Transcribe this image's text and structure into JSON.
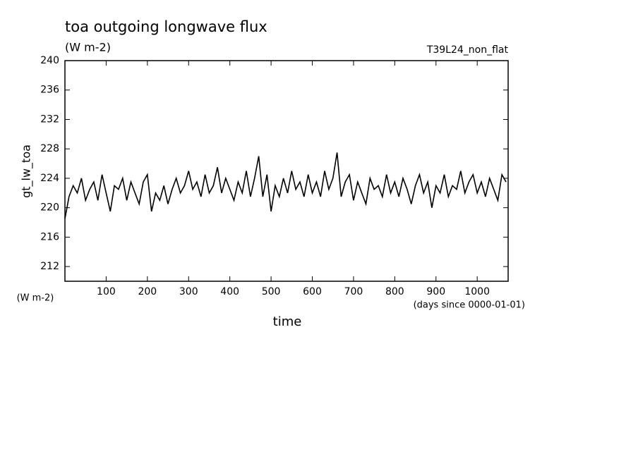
{
  "chart_data": {
    "type": "line",
    "title": "toa outgoing longwave flux",
    "subtitle": "(W m-2)",
    "run_label": "T39L24_non_flat",
    "y_label": "gt_lw_toa",
    "y_unit": "(W m-2)",
    "x_label": "time",
    "x_unit": "(days since 0000-01-01)",
    "xlim": [
      0,
      1075
    ],
    "ylim": [
      210,
      240
    ],
    "xticks": [
      100,
      200,
      300,
      400,
      500,
      600,
      700,
      800,
      900,
      1000
    ],
    "yticks": [
      212,
      216,
      220,
      224,
      228,
      232,
      236,
      240
    ],
    "color": "#000000",
    "x": [
      0,
      10,
      20,
      30,
      40,
      50,
      60,
      70,
      80,
      90,
      100,
      110,
      120,
      130,
      140,
      150,
      160,
      170,
      180,
      190,
      200,
      210,
      220,
      230,
      240,
      250,
      260,
      270,
      280,
      290,
      300,
      310,
      320,
      330,
      340,
      350,
      360,
      370,
      380,
      390,
      400,
      410,
      420,
      430,
      440,
      450,
      460,
      470,
      480,
      490,
      500,
      510,
      520,
      530,
      540,
      550,
      560,
      570,
      580,
      590,
      600,
      610,
      620,
      630,
      640,
      650,
      660,
      670,
      680,
      690,
      700,
      710,
      720,
      730,
      740,
      750,
      760,
      770,
      780,
      790,
      800,
      810,
      820,
      830,
      840,
      850,
      860,
      870,
      880,
      890,
      900,
      910,
      920,
      930,
      940,
      950,
      960,
      970,
      980,
      990,
      1000,
      1010,
      1020,
      1030,
      1040,
      1050,
      1060,
      1070
    ],
    "values": [
      218.5,
      221.5,
      223,
      222,
      224,
      221,
      222.5,
      223.5,
      221,
      224.5,
      222,
      219.5,
      223,
      222.5,
      224,
      221,
      223.5,
      222,
      220.5,
      223.5,
      224.5,
      219.5,
      222,
      221,
      223,
      220.5,
      222.5,
      224,
      222,
      223,
      225,
      222.5,
      223.5,
      221.5,
      224.5,
      222,
      223,
      225.5,
      222,
      224,
      222.5,
      221,
      223.5,
      222,
      225,
      221.5,
      224,
      227,
      221.5,
      224.5,
      219.5,
      223,
      221.5,
      224,
      222,
      225,
      222.5,
      223.5,
      221.5,
      224.5,
      222,
      223.5,
      221.5,
      225,
      222.5,
      224,
      227.5,
      221.5,
      223.5,
      224.5,
      221,
      223.5,
      222,
      220.5,
      224,
      222.5,
      223,
      221.5,
      224.5,
      222,
      223.5,
      221.5,
      224,
      222.5,
      220.5,
      223,
      224.5,
      222,
      223.5,
      220,
      223,
      222,
      224.5,
      221.5,
      223,
      222.5,
      225,
      222,
      223.5,
      224.5,
      222,
      223.5,
      221.5,
      224,
      222.5,
      221,
      224.5,
      223.5
    ]
  }
}
